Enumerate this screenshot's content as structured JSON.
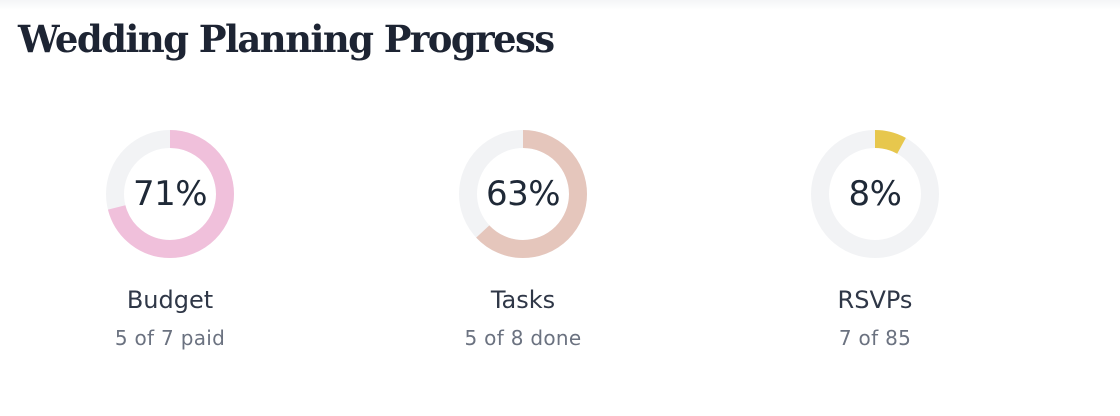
{
  "page": {
    "title": "Wedding Planning Progress"
  },
  "colors": {
    "track": "#f2f3f5",
    "title": "#1d2433",
    "budget": "#f0c0db",
    "tasks": "#e5c6bc",
    "rsvps": "#e7c74d"
  },
  "metrics": [
    {
      "key": "budget",
      "percent_label": "71%",
      "progress": 0.71,
      "label": "Budget",
      "detail": "5 of 7 paid",
      "color": "#f0c0db"
    },
    {
      "key": "tasks",
      "percent_label": "63%",
      "progress": 0.63,
      "label": "Tasks",
      "detail": "5 of 8 done",
      "color": "#e5c6bc"
    },
    {
      "key": "rsvps",
      "percent_label": "8%",
      "progress": 0.08,
      "label": "RSVPs",
      "detail": "7 of 85",
      "color": "#e7c74d"
    }
  ]
}
